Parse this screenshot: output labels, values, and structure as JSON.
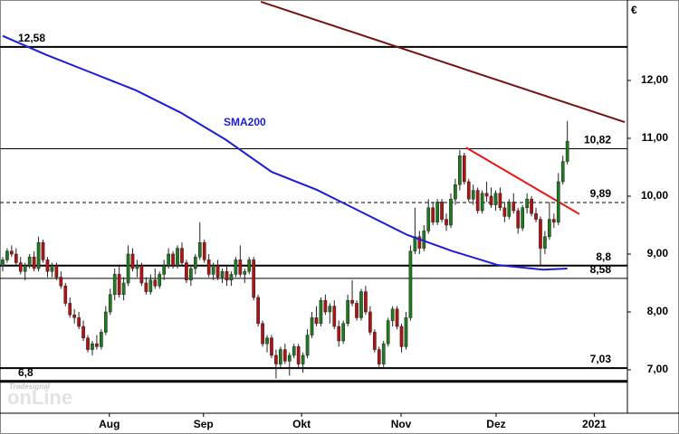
{
  "chart_data": {
    "type": "candlestick",
    "currency": "€",
    "watermark": {
      "brand": "Tradesignal",
      "name": "onLine"
    },
    "xlim": [
      -0.6,
      139.4
    ],
    "xticks": [
      {
        "value": 23.8,
        "label": "Aug"
      },
      {
        "value": 44.8,
        "label": "Sep"
      },
      {
        "value": 66.7,
        "label": "Okt"
      },
      {
        "value": 88.9,
        "label": "Nov"
      },
      {
        "value": 110.1,
        "label": "Dez"
      },
      {
        "value": 132,
        "label": "2021"
      }
    ],
    "ylim": [
      6.25,
      13.39
    ],
    "yticks": [
      {
        "value": 7,
        "label": "7,00"
      },
      {
        "value": 8,
        "label": "8,00"
      },
      {
        "value": 9,
        "label": "9,00"
      },
      {
        "value": 10,
        "label": "10,00"
      },
      {
        "value": 11,
        "label": "11,00"
      },
      {
        "value": 12,
        "label": "12,00"
      }
    ],
    "up_color": "#1f7a1f",
    "down_color": "#b31212",
    "candles": [
      [
        8.8,
        8.95,
        8.7,
        8.9
      ],
      [
        8.9,
        9.1,
        8.85,
        9.05
      ],
      [
        9.05,
        9.15,
        8.95,
        9.0
      ],
      [
        9.0,
        9.1,
        8.8,
        8.85
      ],
      [
        8.85,
        8.95,
        8.65,
        8.7
      ],
      [
        8.7,
        8.85,
        8.55,
        8.8
      ],
      [
        8.8,
        9.0,
        8.75,
        8.95
      ],
      [
        8.95,
        9.05,
        8.7,
        8.75
      ],
      [
        8.75,
        9.3,
        8.7,
        9.2
      ],
      [
        9.2,
        9.25,
        8.85,
        8.9
      ],
      [
        8.9,
        8.95,
        8.6,
        8.7
      ],
      [
        8.7,
        8.85,
        8.6,
        8.8
      ],
      [
        8.8,
        8.85,
        8.55,
        8.6
      ],
      [
        8.6,
        8.7,
        8.4,
        8.45
      ],
      [
        8.45,
        8.5,
        8.1,
        8.15
      ],
      [
        8.15,
        8.25,
        7.9,
        7.95
      ],
      [
        7.95,
        8.05,
        7.8,
        7.9
      ],
      [
        7.9,
        8.0,
        7.7,
        7.75
      ],
      [
        7.75,
        7.85,
        7.5,
        7.55
      ],
      [
        7.55,
        7.6,
        7.3,
        7.35
      ],
      [
        7.35,
        7.5,
        7.25,
        7.45
      ],
      [
        7.45,
        7.6,
        7.35,
        7.4
      ],
      [
        7.4,
        7.7,
        7.35,
        7.65
      ],
      [
        7.65,
        8.1,
        7.6,
        8.0
      ],
      [
        8.0,
        8.4,
        7.95,
        8.3
      ],
      [
        8.3,
        8.75,
        8.2,
        8.65
      ],
      [
        8.65,
        8.8,
        8.25,
        8.3
      ],
      [
        8.3,
        8.6,
        8.2,
        8.5
      ],
      [
        8.5,
        9.15,
        8.45,
        9.0
      ],
      [
        9.0,
        9.1,
        8.7,
        8.75
      ],
      [
        8.75,
        8.9,
        8.6,
        8.8
      ],
      [
        8.8,
        8.85,
        8.45,
        8.5
      ],
      [
        8.5,
        8.6,
        8.3,
        8.35
      ],
      [
        8.35,
        8.65,
        8.3,
        8.55
      ],
      [
        8.55,
        8.75,
        8.4,
        8.45
      ],
      [
        8.45,
        8.7,
        8.4,
        8.65
      ],
      [
        8.65,
        8.9,
        8.55,
        8.8
      ],
      [
        8.8,
        9.1,
        8.75,
        9.0
      ],
      [
        9.0,
        9.05,
        8.75,
        8.8
      ],
      [
        8.8,
        9.15,
        8.75,
        9.1
      ],
      [
        9.1,
        9.2,
        8.8,
        8.85
      ],
      [
        8.85,
        8.9,
        8.5,
        8.55
      ],
      [
        8.55,
        8.8,
        8.45,
        8.75
      ],
      [
        8.75,
        9.0,
        8.65,
        8.95
      ],
      [
        8.95,
        9.55,
        8.9,
        9.2
      ],
      [
        9.2,
        9.25,
        8.85,
        8.9
      ],
      [
        8.9,
        9.0,
        8.6,
        8.65
      ],
      [
        8.65,
        8.85,
        8.55,
        8.8
      ],
      [
        8.8,
        8.9,
        8.55,
        8.6
      ],
      [
        8.6,
        8.75,
        8.5,
        8.7
      ],
      [
        8.7,
        8.8,
        8.45,
        8.55
      ],
      [
        8.55,
        8.7,
        8.45,
        8.65
      ],
      [
        8.65,
        8.95,
        8.6,
        8.9
      ],
      [
        8.9,
        9.15,
        8.6,
        8.65
      ],
      [
        8.65,
        8.75,
        8.5,
        8.7
      ],
      [
        8.7,
        8.95,
        8.65,
        8.9
      ],
      [
        8.9,
        8.95,
        8.2,
        8.25
      ],
      [
        8.25,
        8.3,
        7.75,
        7.8
      ],
      [
        7.8,
        7.85,
        7.4,
        7.45
      ],
      [
        7.45,
        7.6,
        7.3,
        7.55
      ],
      [
        7.55,
        7.6,
        7.2,
        7.25
      ],
      [
        7.25,
        7.35,
        6.85,
        7.1
      ],
      [
        7.1,
        7.4,
        7.05,
        7.35
      ],
      [
        7.35,
        7.45,
        7.1,
        7.15
      ],
      [
        7.15,
        7.3,
        6.9,
        7.25
      ],
      [
        7.25,
        7.45,
        7.2,
        7.4
      ],
      [
        7.4,
        7.45,
        7.05,
        7.1
      ],
      [
        7.1,
        7.3,
        6.95,
        7.25
      ],
      [
        7.25,
        7.7,
        7.2,
        7.6
      ],
      [
        7.6,
        8.0,
        7.55,
        7.9
      ],
      [
        7.9,
        8.1,
        7.75,
        7.8
      ],
      [
        7.8,
        8.25,
        7.75,
        8.2
      ],
      [
        8.2,
        8.3,
        7.95,
        8.0
      ],
      [
        8.0,
        8.15,
        7.8,
        8.1
      ],
      [
        8.1,
        8.2,
        7.7,
        7.75
      ],
      [
        7.75,
        7.85,
        7.4,
        7.5
      ],
      [
        7.5,
        7.85,
        7.45,
        7.8
      ],
      [
        7.8,
        8.3,
        7.75,
        8.2
      ],
      [
        8.2,
        8.55,
        8.1,
        8.15
      ],
      [
        8.15,
        8.2,
        7.85,
        7.9
      ],
      [
        7.9,
        8.4,
        7.85,
        8.35
      ],
      [
        8.35,
        8.45,
        7.95,
        8.0
      ],
      [
        8.0,
        8.1,
        7.6,
        7.65
      ],
      [
        7.65,
        7.7,
        7.3,
        7.35
      ],
      [
        7.35,
        7.4,
        7.05,
        7.1
      ],
      [
        7.1,
        7.5,
        7.05,
        7.45
      ],
      [
        7.45,
        7.9,
        7.4,
        7.85
      ],
      [
        7.85,
        8.1,
        7.75,
        8.05
      ],
      [
        8.05,
        8.1,
        7.7,
        7.75
      ],
      [
        7.75,
        7.8,
        7.3,
        7.4
      ],
      [
        7.4,
        8.0,
        7.35,
        7.9
      ],
      [
        7.9,
        9.15,
        7.85,
        9.05
      ],
      [
        9.05,
        9.8,
        9.0,
        9.3
      ],
      [
        9.3,
        9.4,
        9.0,
        9.1
      ],
      [
        9.1,
        9.5,
        9.05,
        9.4
      ],
      [
        9.4,
        9.95,
        9.35,
        9.8
      ],
      [
        9.8,
        9.9,
        9.5,
        9.55
      ],
      [
        9.55,
        9.95,
        9.5,
        9.9
      ],
      [
        9.9,
        9.95,
        9.55,
        9.6
      ],
      [
        9.6,
        9.7,
        9.4,
        9.5
      ],
      [
        9.5,
        10.05,
        9.45,
        9.95
      ],
      [
        9.95,
        10.3,
        9.85,
        10.2
      ],
      [
        10.2,
        10.8,
        10.1,
        10.7
      ],
      [
        10.7,
        10.75,
        10.2,
        10.25
      ],
      [
        10.25,
        10.3,
        9.9,
        9.95
      ],
      [
        9.95,
        10.2,
        9.85,
        10.1
      ],
      [
        10.1,
        10.15,
        9.7,
        9.75
      ],
      [
        9.75,
        10.1,
        9.7,
        10.05
      ],
      [
        10.05,
        10.25,
        9.9,
        10.0
      ],
      [
        10.0,
        10.15,
        9.8,
        9.85
      ],
      [
        9.85,
        10.1,
        9.75,
        10.05
      ],
      [
        10.05,
        10.15,
        9.75,
        9.8
      ],
      [
        9.8,
        9.9,
        9.55,
        9.65
      ],
      [
        9.65,
        9.95,
        9.6,
        9.9
      ],
      [
        9.9,
        10.05,
        9.7,
        9.75
      ],
      [
        9.75,
        9.8,
        9.35,
        9.45
      ],
      [
        9.45,
        9.85,
        9.4,
        9.8
      ],
      [
        9.8,
        10.05,
        9.7,
        9.95
      ],
      [
        9.95,
        10.0,
        9.65,
        9.7
      ],
      [
        9.7,
        9.8,
        9.55,
        9.6
      ],
      [
        9.6,
        9.65,
        8.8,
        9.1
      ],
      [
        9.1,
        9.4,
        9.0,
        9.3
      ],
      [
        9.3,
        9.9,
        9.25,
        9.6
      ],
      [
        9.6,
        9.7,
        9.45,
        9.55
      ],
      [
        9.55,
        10.4,
        9.5,
        10.25
      ],
      [
        10.25,
        10.7,
        10.2,
        10.6
      ],
      [
        10.6,
        11.3,
        10.55,
        10.95
      ]
    ],
    "levels": [
      {
        "value": 12.58,
        "label": "12,58",
        "style": "thick",
        "side": "left"
      },
      {
        "value": 10.82,
        "label": "10,82",
        "style": "thin",
        "side": "right"
      },
      {
        "value": 9.89,
        "label": "9,89",
        "style": "dashed",
        "side": "right"
      },
      {
        "value": 8.8,
        "label": "8,8",
        "style": "thick",
        "side": "right"
      },
      {
        "value": 8.58,
        "label": "8,58",
        "style": "thin",
        "side": "right"
      },
      {
        "value": 7.03,
        "label": "7,03",
        "style": "thick",
        "side": "right"
      },
      {
        "value": 6.8,
        "label": "6,8",
        "style": "thicker",
        "side": "left"
      }
    ],
    "series": [
      {
        "name": "SMA200",
        "color": "#1c1cd6",
        "x": [
          0,
          9.5,
          19.6,
          29.7,
          39.8,
          49.9,
          60,
          70.1,
          80.2,
          90.3,
          100.4,
          110.5,
          120.6,
          126
        ],
        "values": [
          12.77,
          12.45,
          12.14,
          11.83,
          11.44,
          10.97,
          10.42,
          10.11,
          9.72,
          9.33,
          9.05,
          8.81,
          8.73,
          8.75
        ]
      }
    ],
    "trendlines": [
      {
        "color": "#7a1212",
        "x": [
          57.6,
          138.8
        ],
        "values": [
          13.36,
          11.28
        ]
      },
      {
        "color": "#e81818",
        "x": [
          103.4,
          128.7
        ],
        "values": [
          10.84,
          9.69
        ]
      }
    ]
  }
}
